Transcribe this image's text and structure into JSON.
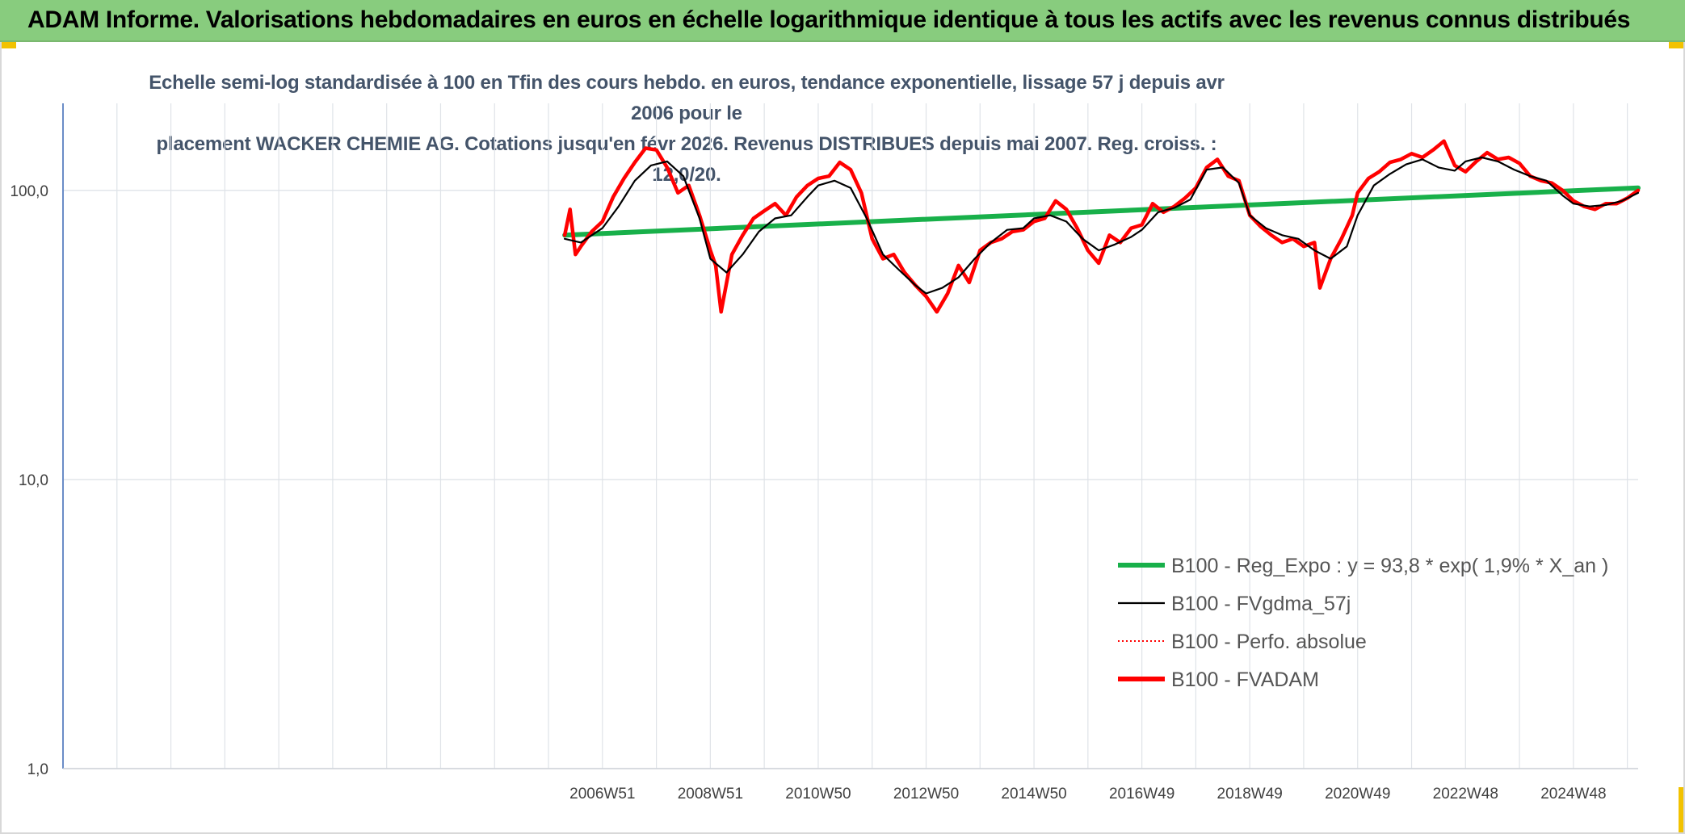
{
  "header": {
    "title": "ADAM Informe. Valorisations hebdomadaires en euros en échelle logarithmique identique à tous les actifs avec les revenus connus distribués"
  },
  "colors": {
    "header_bg": "#88cc7e",
    "corner_accent": "#f2c200",
    "regression": "#18b04a",
    "smoothed": "#000000",
    "absolute": "#ff0000",
    "adam": "#ff0000",
    "grid": "#dfe3e8",
    "axis": "#6a8cc7"
  },
  "chart_data": {
    "type": "line",
    "subtitle_lines": [
      "Echelle semi-log standardisée à 100 en Tfin des cours hebdo. en euros, tendance exponentielle, lissage 57 j depuis avr 2006 pour le",
      "placement WACKER CHEMIE AG. Cotations jusqu'en févr 2026. Revenus DISTRIBUES depuis mai 2007. Reg. croiss. : 12,0/20."
    ],
    "y_scale": "log",
    "ylim": [
      1,
      200
    ],
    "y_ticks": [
      {
        "value": 1,
        "label": "1,0"
      },
      {
        "value": 10,
        "label": "10,0"
      },
      {
        "value": 100,
        "label": "100,0"
      }
    ],
    "xlim": [
      1997.0,
      2026.2
    ],
    "x_ticks": [
      {
        "value": 2007.0,
        "label": "2006W51"
      },
      {
        "value": 2009.0,
        "label": "2008W51"
      },
      {
        "value": 2011.0,
        "label": "2010W50"
      },
      {
        "value": 2013.0,
        "label": "2012W50"
      },
      {
        "value": 2015.0,
        "label": "2014W50"
      },
      {
        "value": 2017.0,
        "label": "2016W49"
      },
      {
        "value": 2019.0,
        "label": "2018W49"
      },
      {
        "value": 2021.0,
        "label": "2020W49"
      },
      {
        "value": 2023.0,
        "label": "2022W48"
      },
      {
        "value": 2025.0,
        "label": "2024W48"
      }
    ],
    "gridlines": true,
    "legend_position": "lower-right",
    "series": [
      {
        "name": "B100 - Reg_Expo : y = 93,8 * exp( 1,9% *  X_an )",
        "style": "thick",
        "color": "#18b04a",
        "x": [
          2006.3,
          2026.2
        ],
        "y": [
          70,
          102
        ]
      },
      {
        "name": "B100 - FVgdma_57j",
        "style": "thin",
        "color": "#000000",
        "x": [
          2006.3,
          2006.6,
          2007.0,
          2007.3,
          2007.6,
          2007.9,
          2008.2,
          2008.5,
          2008.8,
          2009.0,
          2009.3,
          2009.6,
          2009.9,
          2010.2,
          2010.5,
          2010.8,
          2011.0,
          2011.3,
          2011.6,
          2011.9,
          2012.2,
          2012.5,
          2012.8,
          2013.0,
          2013.3,
          2013.6,
          2013.9,
          2014.2,
          2014.5,
          2014.8,
          2015.0,
          2015.3,
          2015.6,
          2015.9,
          2016.2,
          2016.5,
          2016.8,
          2017.0,
          2017.3,
          2017.6,
          2017.9,
          2018.2,
          2018.5,
          2018.8,
          2019.0,
          2019.3,
          2019.6,
          2019.9,
          2020.2,
          2020.5,
          2020.8,
          2021.0,
          2021.3,
          2021.6,
          2021.9,
          2022.2,
          2022.5,
          2022.8,
          2023.0,
          2023.3,
          2023.6,
          2023.9,
          2024.2,
          2024.5,
          2024.8,
          2025.0,
          2025.3,
          2025.6,
          2025.9,
          2026.2
        ],
        "y": [
          68,
          66,
          74,
          88,
          108,
          122,
          126,
          112,
          80,
          58,
          52,
          60,
          72,
          80,
          82,
          95,
          104,
          108,
          102,
          80,
          60,
          53,
          47,
          44,
          46,
          50,
          58,
          66,
          73,
          74,
          80,
          82,
          78,
          68,
          62,
          65,
          69,
          73,
          84,
          87,
          93,
          118,
          120,
          106,
          82,
          74,
          70,
          68,
          62,
          58,
          64,
          82,
          104,
          114,
          123,
          128,
          120,
          117,
          126,
          130,
          126,
          118,
          112,
          108,
          96,
          90,
          88,
          89,
          92,
          98
        ]
      },
      {
        "name": "B100 - Perfo. absolue",
        "style": "dotted",
        "color": "#ff0000",
        "x": [],
        "y": []
      },
      {
        "name": "B100 - FVADAM",
        "style": "thick",
        "color": "#ff0000",
        "x": [
          2006.3,
          2006.4,
          2006.5,
          2006.6,
          2006.8,
          2007.0,
          2007.2,
          2007.4,
          2007.6,
          2007.8,
          2008.0,
          2008.2,
          2008.4,
          2008.6,
          2008.8,
          2009.0,
          2009.1,
          2009.2,
          2009.4,
          2009.6,
          2009.8,
          2010.0,
          2010.2,
          2010.4,
          2010.6,
          2010.8,
          2011.0,
          2011.2,
          2011.4,
          2011.6,
          2011.8,
          2012.0,
          2012.2,
          2012.4,
          2012.6,
          2012.8,
          2013.0,
          2013.2,
          2013.4,
          2013.6,
          2013.8,
          2014.0,
          2014.2,
          2014.4,
          2014.6,
          2014.8,
          2015.0,
          2015.2,
          2015.4,
          2015.6,
          2015.8,
          2016.0,
          2016.2,
          2016.4,
          2016.6,
          2016.8,
          2017.0,
          2017.2,
          2017.4,
          2017.6,
          2017.8,
          2018.0,
          2018.2,
          2018.4,
          2018.6,
          2018.8,
          2019.0,
          2019.2,
          2019.4,
          2019.6,
          2019.8,
          2020.0,
          2020.2,
          2020.3,
          2020.5,
          2020.7,
          2020.9,
          2021.0,
          2021.2,
          2021.4,
          2021.6,
          2021.8,
          2022.0,
          2022.2,
          2022.4,
          2022.6,
          2022.8,
          2023.0,
          2023.2,
          2023.4,
          2023.6,
          2023.8,
          2024.0,
          2024.2,
          2024.4,
          2024.6,
          2024.8,
          2025.0,
          2025.2,
          2025.4,
          2025.6,
          2025.8,
          2026.0,
          2026.2
        ],
        "y": [
          70,
          86,
          60,
          64,
          72,
          78,
          95,
          110,
          125,
          140,
          138,
          120,
          98,
          104,
          82,
          62,
          55,
          38,
          60,
          70,
          80,
          85,
          90,
          82,
          95,
          104,
          110,
          112,
          125,
          118,
          98,
          68,
          58,
          60,
          52,
          47,
          43,
          38,
          44,
          55,
          48,
          62,
          66,
          68,
          72,
          73,
          78,
          80,
          92,
          86,
          74,
          62,
          56,
          70,
          66,
          74,
          76,
          90,
          84,
          88,
          94,
          102,
          120,
          128,
          112,
          108,
          82,
          75,
          70,
          66,
          68,
          64,
          66,
          46,
          58,
          68,
          82,
          98,
          110,
          116,
          125,
          128,
          134,
          130,
          138,
          148,
          122,
          116,
          126,
          135,
          128,
          130,
          124,
          112,
          108,
          106,
          100,
          92,
          88,
          86,
          90,
          90,
          94,
          100
        ]
      }
    ]
  }
}
